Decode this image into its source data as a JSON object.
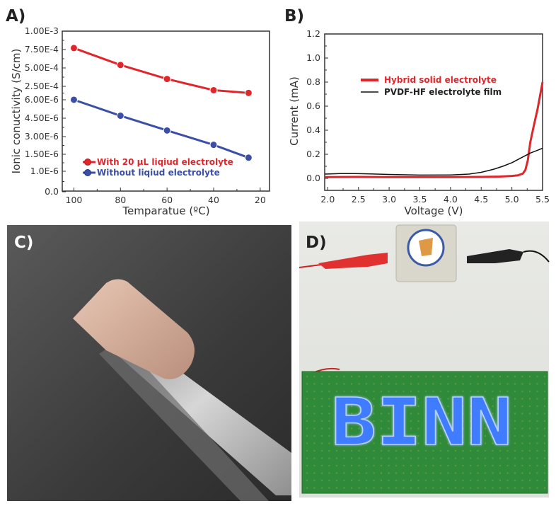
{
  "panels": {
    "a_label": "A)",
    "b_label": "B)",
    "c_label": "C)",
    "d_label": "D)"
  },
  "chart_data": [
    {
      "panel": "A",
      "type": "line",
      "xlabel": "Temparatue (ºC)",
      "ylabel": "Ionic conuctivity (S/cm)",
      "xlim": [
        105,
        16
      ],
      "x_reversed": true,
      "x_ticks": [
        "100",
        "80",
        "60",
        "40",
        "20"
      ],
      "x_tick_values": [
        100,
        80,
        60,
        40,
        20
      ],
      "y_axis_broken": true,
      "y_ticks": [
        "0.0",
        "1.0E-6",
        "1.50E-6",
        "3.00E-6",
        "4.50E-6",
        "6.00E-6",
        "2.50E-4",
        "5.00E-4",
        "7.50E-4",
        "1.00E-3"
      ],
      "y_tick_values": [
        0,
        1e-06,
        1.5e-06,
        3e-06,
        4.5e-06,
        6e-06,
        0.00025,
        0.0005,
        0.00075,
        0.001
      ],
      "grid": false,
      "legend_position": "bottom-left",
      "x": [
        100,
        80,
        60,
        40,
        25
      ],
      "series": [
        {
          "name": "With 20 μL liqiud electrolyte",
          "color": "#e0262b",
          "values": [
            0.00077,
            0.00054,
            0.00035,
            0.00018,
            0.00013
          ]
        },
        {
          "name": "Without liqiud electrolyte",
          "color": "#3a4fa5",
          "values": [
            6.2e-06,
            4.7e-06,
            3.5e-06,
            2.3e-06,
            1.4e-06
          ]
        }
      ]
    },
    {
      "panel": "B",
      "type": "line",
      "xlabel": "Voltage (V)",
      "ylabel": "Current (mA)",
      "xlim": [
        1.95,
        5.5
      ],
      "ylim": [
        -0.1,
        1.2
      ],
      "x_ticks": [
        "2.0",
        "2.5",
        "3.0",
        "3.5",
        "4.0",
        "4.5",
        "5.0",
        "5.5"
      ],
      "y_ticks": [
        "0.0",
        "0.2",
        "0.4",
        "0.6",
        "0.8",
        "1.0",
        "1.2"
      ],
      "grid": false,
      "legend_position": "upper-center",
      "series": [
        {
          "name": "Hybrid solid electrolyte",
          "color": "#e0262b",
          "x": [
            1.95,
            2.5,
            3.0,
            3.5,
            4.0,
            4.5,
            4.8,
            5.0,
            5.1,
            5.18,
            5.22,
            5.26,
            5.3,
            5.35,
            5.42,
            5.5
          ],
          "y": [
            0.01,
            0.012,
            0.01,
            0.01,
            0.01,
            0.012,
            0.015,
            0.02,
            0.025,
            0.04,
            0.07,
            0.15,
            0.3,
            0.42,
            0.58,
            0.8
          ]
        },
        {
          "name": "PVDF-HF electrolyte film",
          "color": "#111111",
          "x": [
            1.95,
            2.2,
            2.4,
            2.7,
            3.0,
            3.5,
            4.0,
            4.3,
            4.5,
            4.7,
            4.85,
            5.0,
            5.15,
            5.3,
            5.4,
            5.5
          ],
          "y": [
            0.035,
            0.04,
            0.04,
            0.037,
            0.032,
            0.027,
            0.028,
            0.035,
            0.05,
            0.075,
            0.1,
            0.13,
            0.17,
            0.21,
            0.23,
            0.25
          ]
        }
      ]
    }
  ],
  "photo_d": {
    "led_text": "BINN",
    "led_color": "#3f7bff",
    "board_color": "#2f8a3a"
  }
}
